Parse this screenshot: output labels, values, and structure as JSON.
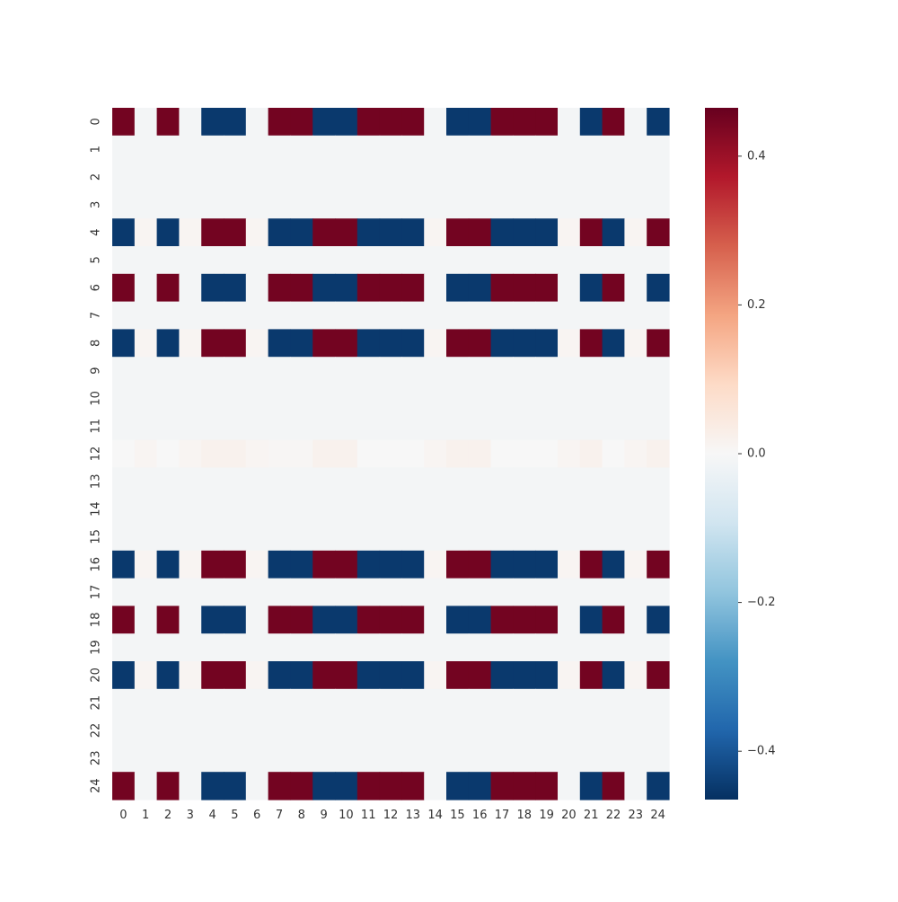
{
  "chart_data": {
    "type": "heatmap",
    "title": "",
    "xlabel": "",
    "ylabel": "",
    "x_ticks": [
      "0",
      "1",
      "2",
      "3",
      "4",
      "5",
      "6",
      "7",
      "8",
      "9",
      "10",
      "11",
      "12",
      "13",
      "14",
      "15",
      "16",
      "17",
      "18",
      "19",
      "20",
      "21",
      "22",
      "23",
      "24"
    ],
    "y_ticks": [
      "0",
      "1",
      "2",
      "3",
      "4",
      "5",
      "6",
      "7",
      "8",
      "9",
      "10",
      "11",
      "12",
      "13",
      "14",
      "15",
      "16",
      "17",
      "18",
      "19",
      "20",
      "21",
      "22",
      "23",
      "24"
    ],
    "colormap": "RdBu_r",
    "vmin": -0.465,
    "vmax": 0.465,
    "colorbar_ticks": [
      {
        "value": 0.4,
        "label": "0.4"
      },
      {
        "value": 0.2,
        "label": "0.2"
      },
      {
        "value": 0.0,
        "label": "0.0"
      },
      {
        "value": -0.2,
        "label": "−0.2"
      },
      {
        "value": -0.4,
        "label": "−0.4"
      }
    ],
    "row_types": [
      "A",
      "n",
      "n",
      "n",
      "B",
      "n",
      "A",
      "n",
      "B",
      "n",
      "n",
      "n",
      "p",
      "n",
      "n",
      "n",
      "B",
      "n",
      "A",
      "n",
      "B",
      "n",
      "n",
      "n",
      "A"
    ],
    "pattern_A": [
      0.45,
      -0.01,
      0.45,
      -0.01,
      -0.45,
      -0.45,
      -0.01,
      0.45,
      0.45,
      -0.45,
      -0.45,
      0.45,
      0.45,
      0.45,
      -0.01,
      -0.45,
      -0.45,
      0.45,
      0.45,
      0.45,
      -0.01,
      -0.45,
      0.45,
      -0.01,
      -0.45
    ],
    "pattern_B": [
      -0.45,
      0.01,
      -0.45,
      0.01,
      0.45,
      0.45,
      0.01,
      -0.45,
      -0.45,
      0.45,
      0.45,
      -0.45,
      -0.45,
      -0.45,
      0.01,
      0.45,
      0.45,
      -0.45,
      -0.45,
      -0.45,
      0.01,
      0.45,
      -0.45,
      0.01,
      0.45
    ],
    "pattern_n": [
      -0.01,
      -0.01,
      -0.01,
      -0.01,
      -0.01,
      -0.01,
      -0.01,
      -0.01,
      -0.01,
      -0.01,
      -0.01,
      -0.01,
      -0.01,
      -0.01,
      -0.01,
      -0.01,
      -0.01,
      -0.01,
      -0.01,
      -0.01,
      -0.01,
      -0.01,
      -0.01,
      -0.01,
      -0.01
    ],
    "pattern_p": [
      0.0,
      0.01,
      0.0,
      0.01,
      0.02,
      0.02,
      0.01,
      0.005,
      0.005,
      0.02,
      0.02,
      0.0,
      0.0,
      0.0,
      0.01,
      0.02,
      0.02,
      0.0,
      0.0,
      0.0,
      0.01,
      0.02,
      0.0,
      0.01,
      0.02
    ],
    "grid": false,
    "legend": "colorbar-right"
  }
}
